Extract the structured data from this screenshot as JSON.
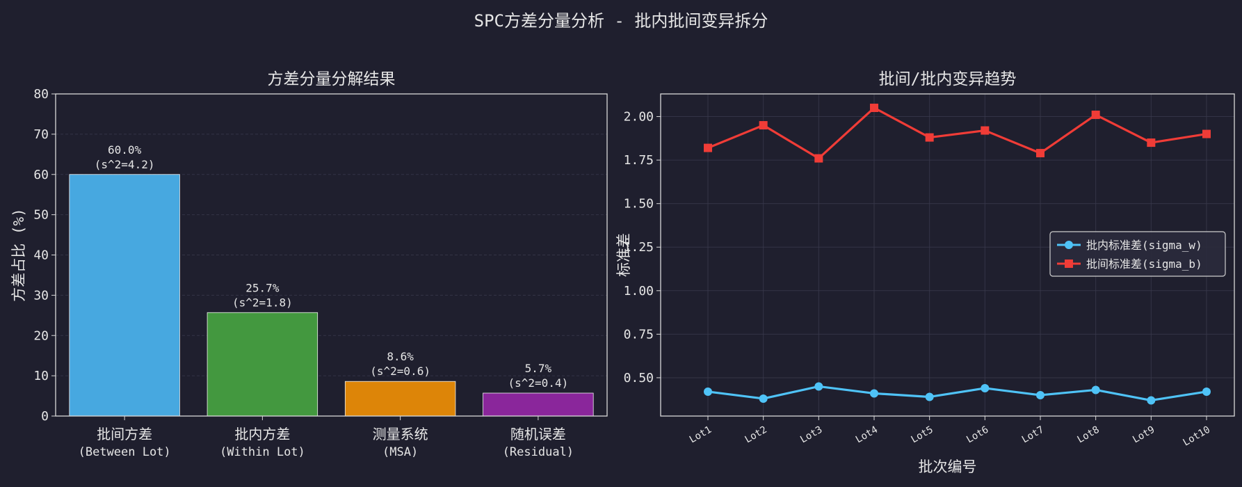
{
  "suptitle": "SPC方差分量分析 - 批内批间变异拆分",
  "colors": {
    "background": "#1f1f2e",
    "axes_edge": "#d9d9d9",
    "grid": "#3a3a4d",
    "bar_between": "#47a8e0",
    "bar_within": "#43983f",
    "bar_msa": "#dd8508",
    "bar_residual": "#8a269b",
    "sigma_w": "#4fc3f7",
    "sigma_b": "#f03c37"
  },
  "chart_data": [
    {
      "type": "bar",
      "title": "方差分量分解结果",
      "xlabel": "",
      "ylabel": "方差占比 (%)",
      "ylim": [
        0,
        80
      ],
      "yticks": [
        "0",
        "10",
        "20",
        "30",
        "40",
        "50",
        "60",
        "70",
        "80"
      ],
      "categories": [
        [
          "批间方差",
          "(Between Lot)"
        ],
        [
          "批内方差",
          "(Within Lot)"
        ],
        [
          "测量系统",
          "(MSA)"
        ],
        [
          "随机误差",
          "(Residual)"
        ]
      ],
      "values": [
        60.0,
        25.7,
        8.6,
        5.7
      ],
      "bar_labels": [
        [
          "60.0%",
          "(s^2=4.2)"
        ],
        [
          "25.7%",
          "(s^2=1.8)"
        ],
        [
          "8.6%",
          "(s^2=0.6)"
        ],
        [
          "5.7%",
          "(s^2=0.4)"
        ]
      ],
      "bar_colors": [
        "#47a8e0",
        "#43983f",
        "#dd8508",
        "#8a269b"
      ],
      "grid": true
    },
    {
      "type": "line",
      "title": "批间/批内变异趋势",
      "xlabel": "批次编号",
      "ylabel": "标准差",
      "ylim": [
        0.28,
        2.13
      ],
      "yticks": [
        "0.50",
        "0.75",
        "1.00",
        "1.25",
        "1.50",
        "1.75",
        "2.00"
      ],
      "x": [
        "Lot1",
        "Lot2",
        "Lot3",
        "Lot4",
        "Lot5",
        "Lot6",
        "Lot7",
        "Lot8",
        "Lot9",
        "Lot10"
      ],
      "series": [
        {
          "name": "批内标准差(sigma_w)",
          "marker": "circle",
          "color": "#4fc3f7",
          "values": [
            0.42,
            0.38,
            0.45,
            0.41,
            0.39,
            0.44,
            0.4,
            0.43,
            0.37,
            0.42
          ]
        },
        {
          "name": "批间标准差(sigma_b)",
          "marker": "square",
          "color": "#f03c37",
          "values": [
            1.82,
            1.95,
            1.76,
            2.05,
            1.88,
            1.92,
            1.79,
            2.01,
            1.85,
            1.9
          ]
        }
      ],
      "legend": "center-right",
      "grid": true
    }
  ]
}
